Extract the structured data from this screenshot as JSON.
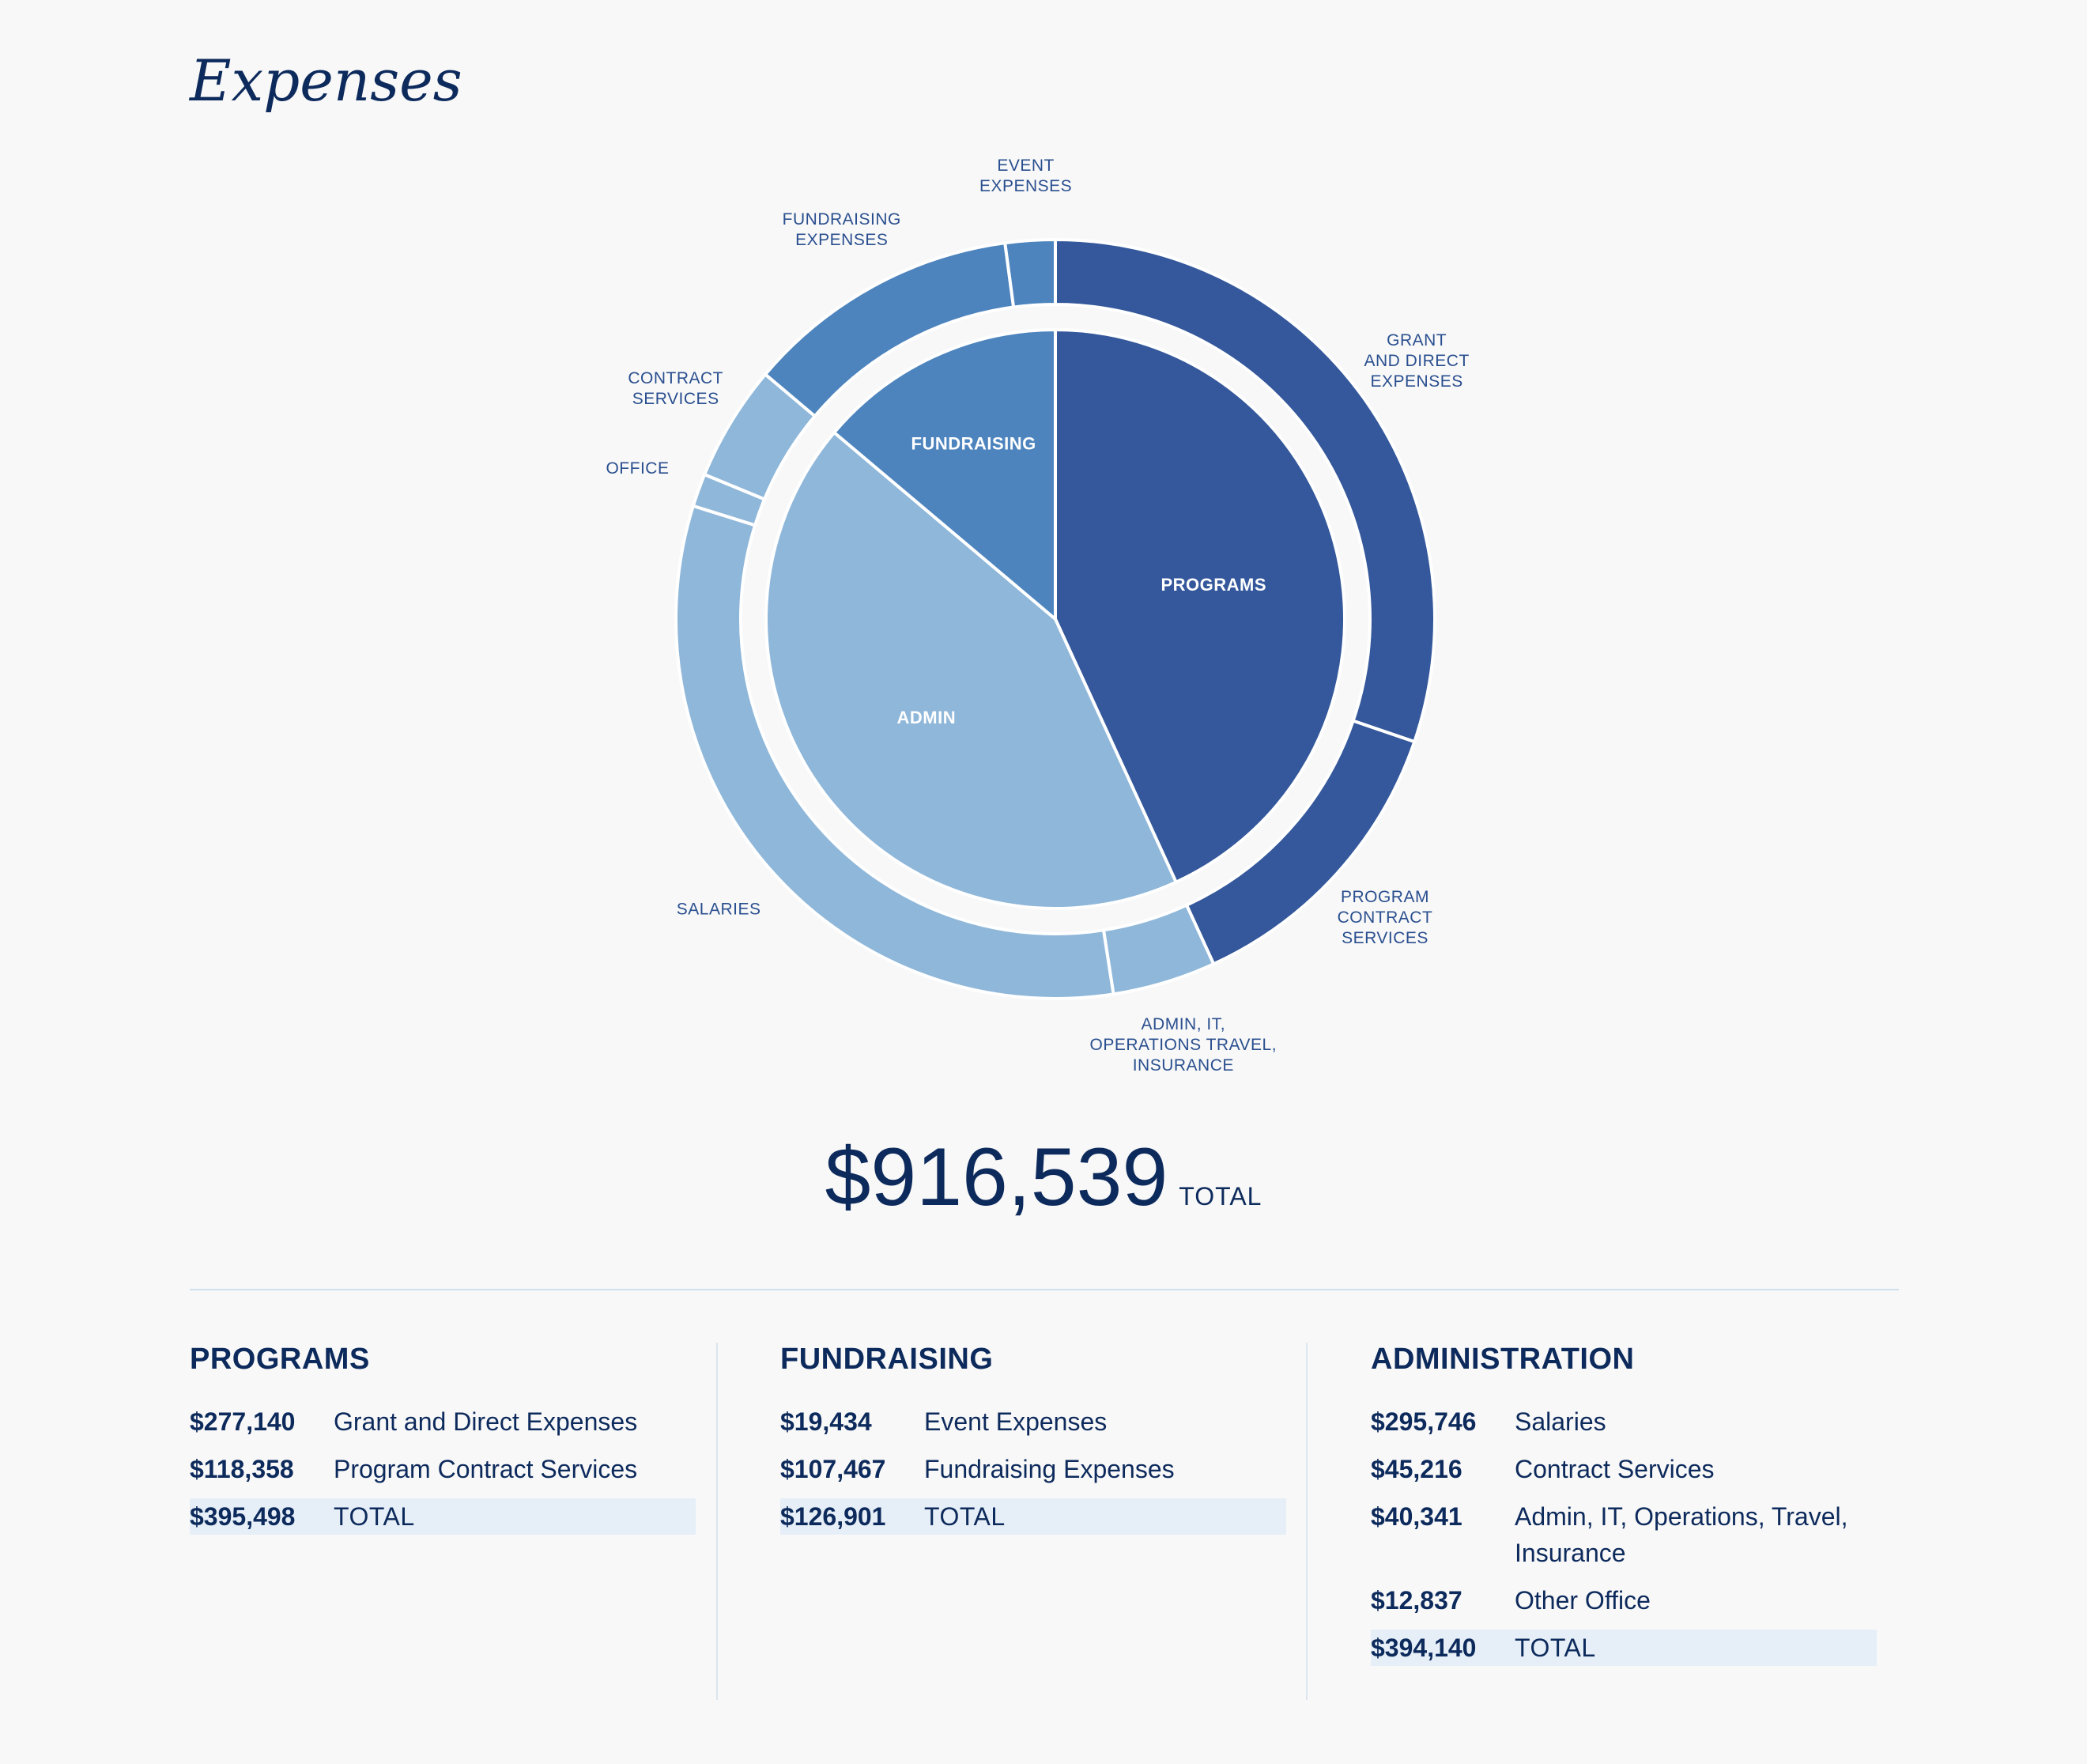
{
  "title": "Expenses",
  "total": {
    "amount": "$916,539",
    "label": "TOTAL"
  },
  "chart_data": {
    "type": "pie",
    "title": "Expenses",
    "inner": {
      "labels": [
        "PROGRAMS",
        "ADMIN",
        "FUNDRAISING"
      ],
      "values": [
        395498,
        394140,
        126901
      ],
      "colors": [
        "#34589b",
        "#8fb7da",
        "#4d84be"
      ]
    },
    "outer": {
      "labels": [
        [
          "GRANT",
          "AND DIRECT",
          "EXPENSES"
        ],
        [
          "PROGRAM",
          "CONTRACT",
          "SERVICES"
        ],
        [
          "ADMIN, IT,",
          "OPERATIONS TRAVEL,",
          "INSURANCE"
        ],
        [
          "SALARIES"
        ],
        [
          "OFFICE"
        ],
        [
          "CONTRACT",
          "SERVICES"
        ],
        [
          "FUNDRAISING",
          "EXPENSES"
        ],
        [
          "EVENT",
          "EXPENSES"
        ]
      ],
      "values": [
        277140,
        118358,
        40341,
        295746,
        12837,
        45216,
        107467,
        19434
      ],
      "colors": [
        "#34589b",
        "#34589b",
        "#8fb7da",
        "#8fb7da",
        "#8fb7da",
        "#8fb7da",
        "#4d84be",
        "#4d84be"
      ]
    }
  },
  "columns": [
    {
      "heading": "PROGRAMS",
      "rows": [
        {
          "value": "$277,140",
          "label": "Grant and Direct Expenses"
        },
        {
          "value": "$118,358",
          "label": "Program Contract Services"
        }
      ],
      "total": {
        "value": "$395,498",
        "label": "TOTAL"
      }
    },
    {
      "heading": "FUNDRAISING",
      "rows": [
        {
          "value": "$19,434",
          "label": "Event Expenses"
        },
        {
          "value": "$107,467",
          "label": "Fundraising Expenses"
        }
      ],
      "total": {
        "value": "$126,901",
        "label": "TOTAL"
      }
    },
    {
      "heading": "ADMINISTRATION",
      "rows": [
        {
          "value": "$295,746",
          "label": "Salaries"
        },
        {
          "value": "$45,216",
          "label": "Contract Services"
        },
        {
          "value": "$40,341",
          "label": "Admin, IT, Operations, Travel, Insurance"
        },
        {
          "value": "$12,837",
          "label": "Other Office"
        }
      ],
      "total": {
        "value": "$394,140",
        "label": "TOTAL"
      }
    }
  ]
}
